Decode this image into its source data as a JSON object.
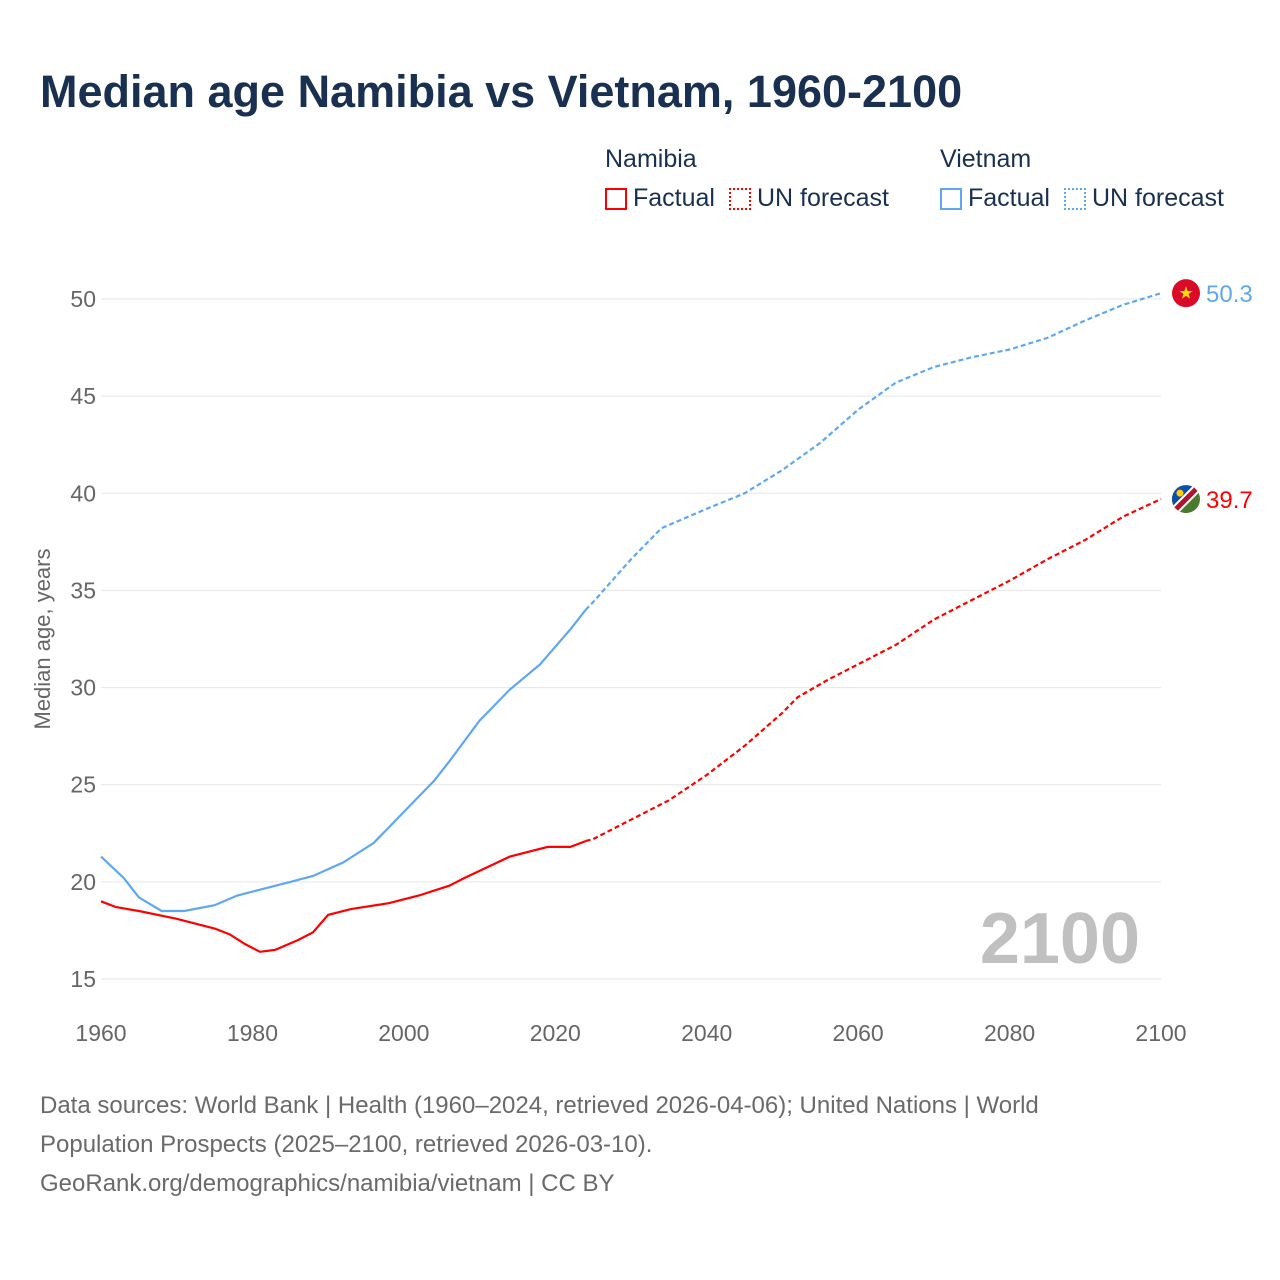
{
  "title": "Median age Namibia vs Vietnam, 1960-2100",
  "legend": {
    "groups": [
      {
        "name": "Namibia",
        "color": "#ff0000",
        "factual": "Factual",
        "forecast": "UN forecast"
      },
      {
        "name": "Vietnam",
        "color": "#5fa8ef",
        "factual": "Factual",
        "forecast": "UN forecast"
      }
    ]
  },
  "chart_data": {
    "type": "line",
    "title": "Median age Namibia vs Vietnam, 1960-2100",
    "xlabel": "",
    "ylabel": "Median age, years",
    "xlim": [
      1960,
      2100
    ],
    "ylim": [
      15,
      52
    ],
    "xticks": [
      1960,
      1980,
      2000,
      2020,
      2040,
      2060,
      2080,
      2100
    ],
    "yticks": [
      15,
      20,
      25,
      30,
      35,
      40,
      45,
      50
    ],
    "grid": true,
    "year_watermark": "2100",
    "factual_end_year": 2024,
    "series": [
      {
        "name": "Namibia",
        "color": "#ff0000",
        "end_label": "39.7",
        "x": [
          1960,
          1962,
          1965,
          1970,
          1975,
          1977,
          1979,
          1981,
          1983,
          1986,
          1988,
          1990,
          1993,
          1998,
          2002,
          2006,
          2008,
          2014,
          2019,
          2022,
          2024,
          2025,
          2030,
          2035,
          2040,
          2045,
          2050,
          2052,
          2056,
          2060,
          2065,
          2070,
          2075,
          2080,
          2085,
          2090,
          2095,
          2100
        ],
        "y": [
          19.0,
          18.7,
          18.5,
          18.1,
          17.6,
          17.3,
          16.8,
          16.4,
          16.5,
          17.0,
          17.4,
          18.3,
          18.6,
          18.9,
          19.3,
          19.8,
          20.2,
          21.3,
          21.8,
          21.8,
          22.1,
          22.2,
          23.2,
          24.2,
          25.5,
          27.0,
          28.7,
          29.5,
          30.4,
          31.2,
          32.2,
          33.5,
          34.5,
          35.5,
          36.6,
          37.6,
          38.8,
          39.7
        ]
      },
      {
        "name": "Vietnam",
        "color": "#5fa8ef",
        "end_label": "50.3",
        "x": [
          1960,
          1963,
          1965,
          1968,
          1971,
          1975,
          1978,
          1985,
          1988,
          1992,
          1996,
          2000,
          2004,
          2006,
          2010,
          2014,
          2018,
          2022,
          2024,
          2025,
          2030,
          2034,
          2040,
          2045,
          2050,
          2055,
          2060,
          2065,
          2070,
          2075,
          2080,
          2085,
          2090,
          2095,
          2100
        ],
        "y": [
          21.3,
          20.2,
          19.2,
          18.5,
          18.5,
          18.8,
          19.3,
          20.0,
          20.3,
          21.0,
          22.0,
          23.6,
          25.2,
          26.2,
          28.3,
          29.9,
          31.2,
          33.0,
          34.0,
          34.4,
          36.6,
          38.2,
          39.2,
          40.0,
          41.2,
          42.6,
          44.3,
          45.7,
          46.5,
          47.0,
          47.4,
          48.0,
          48.9,
          49.7,
          50.3
        ]
      }
    ]
  },
  "footer": {
    "line1": "Data sources: World Bank | Health (1960–2024, retrieved 2026-04-06); United Nations | World",
    "line2": "Population Prospects (2025–2100, retrieved 2026-03-10).",
    "line3": "GeoRank.org/demographics/namibia/vietnam | CC BY"
  }
}
